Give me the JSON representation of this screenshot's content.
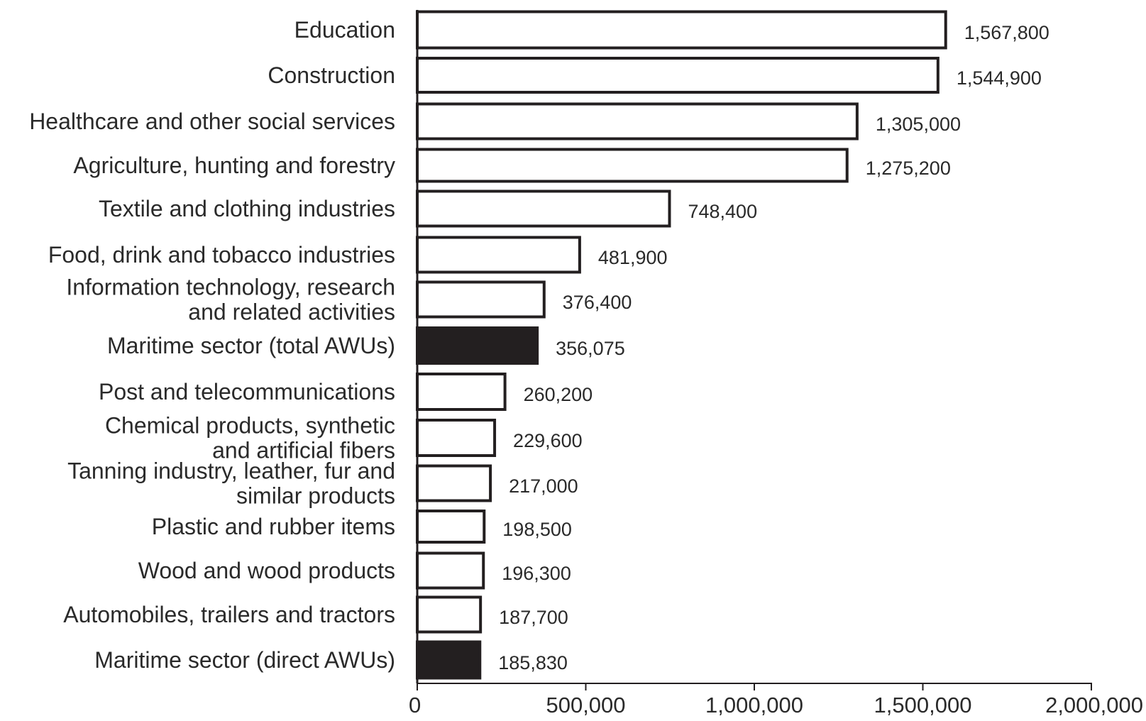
{
  "chart_data": {
    "type": "bar",
    "orientation": "horizontal",
    "title": "",
    "xlabel": "",
    "ylabel": "",
    "xlim": [
      0,
      2000000
    ],
    "grid": false,
    "legend": "none",
    "bar_fill_default": "#ffffff",
    "bar_fill_highlight": "#231f20",
    "bar_stroke": "#231f20",
    "x_ticks": [
      "0",
      "500,000",
      "1,000,000",
      "1,500,000",
      "2,000,000"
    ],
    "x_tick_values": [
      0,
      500000,
      1000000,
      1500000,
      2000000
    ],
    "categories": [
      [
        "Education"
      ],
      [
        "Construction"
      ],
      [
        "Healthcare and other social services"
      ],
      [
        "Agriculture, hunting and forestry"
      ],
      [
        "Textile and clothing industries"
      ],
      [
        "Food, drink and tobacco industries"
      ],
      [
        "Information technology, research",
        "and related activities"
      ],
      [
        "Maritime sector (total AWUs)"
      ],
      [
        "Post and telecommunications"
      ],
      [
        "Chemical products, synthetic",
        "and artificial fibers"
      ],
      [
        "Tanning industry, leather, fur and",
        "similar products"
      ],
      [
        "Plastic and rubber items"
      ],
      [
        "Wood and wood products"
      ],
      [
        "Automobiles, trailers and tractors"
      ],
      [
        "Maritime sector (direct AWUs)"
      ]
    ],
    "values": [
      1567800,
      1544900,
      1305000,
      1275200,
      748400,
      481900,
      376400,
      356075,
      260200,
      229600,
      217000,
      198500,
      196300,
      187700,
      185830
    ],
    "value_labels": [
      "1,567,800",
      "1,544,900",
      "1,305,000",
      "1,275,200",
      "748,400",
      "481,900",
      "376,400",
      "356,075",
      "260,200",
      "229,600",
      "217,000",
      "198,500",
      "196,300",
      "187,700",
      "185,830"
    ],
    "highlighted": [
      false,
      false,
      false,
      false,
      false,
      false,
      false,
      true,
      false,
      false,
      false,
      false,
      false,
      false,
      true
    ]
  }
}
